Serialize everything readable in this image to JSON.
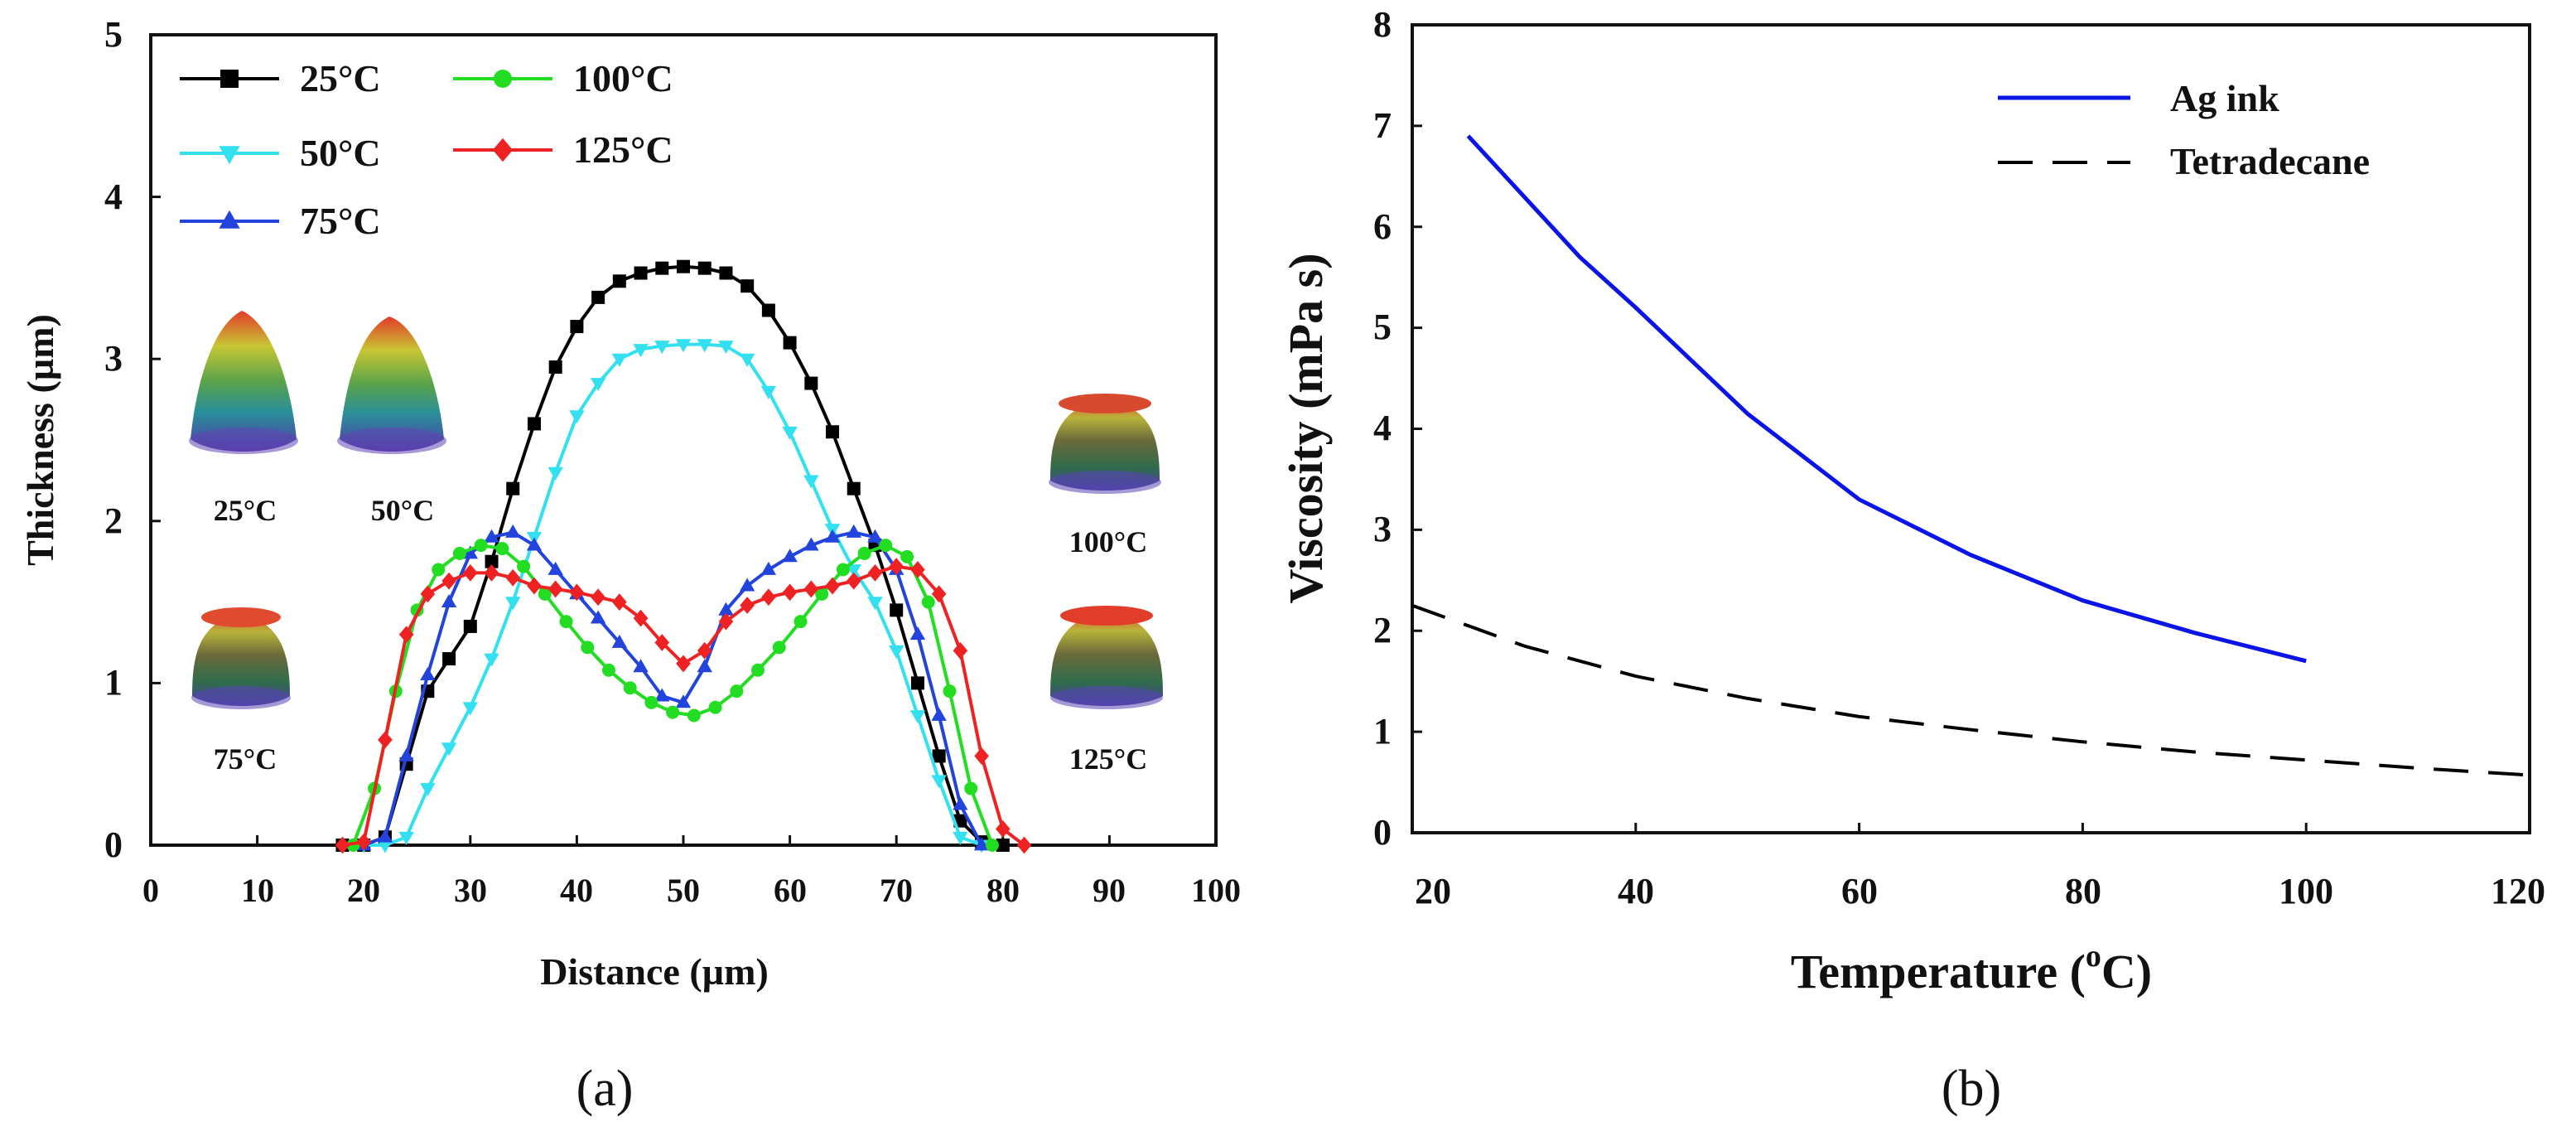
{
  "chart_data": [
    {
      "type": "line",
      "panel_label": "(a)",
      "xlabel": "Distance (µm)",
      "ylabel": "Thickness (µm)",
      "xlim": [
        0,
        100
      ],
      "ylim": [
        0,
        5
      ],
      "xticks": [
        "0",
        "10",
        "20",
        "30",
        "40",
        "50",
        "60",
        "70",
        "80",
        "90",
        "100"
      ],
      "yticks": [
        "0",
        "1",
        "2",
        "3",
        "4",
        "5"
      ],
      "legend_position": "top-left",
      "series": [
        {
          "name": "25°C",
          "color": "#000000",
          "marker": "square",
          "x": [
            18,
            20,
            22,
            24,
            26,
            28,
            30,
            32,
            34,
            36,
            38,
            40,
            42,
            44,
            46,
            48,
            50,
            52,
            54,
            56,
            58,
            60,
            62,
            64,
            66,
            68,
            70,
            72,
            74,
            76,
            78,
            80
          ],
          "y": [
            0,
            0,
            0.05,
            0.5,
            0.95,
            1.15,
            1.35,
            1.75,
            2.2,
            2.6,
            2.95,
            3.2,
            3.38,
            3.48,
            3.53,
            3.56,
            3.57,
            3.56,
            3.53,
            3.45,
            3.3,
            3.1,
            2.85,
            2.55,
            2.2,
            1.85,
            1.45,
            1.0,
            0.55,
            0.15,
            0.02,
            0
          ]
        },
        {
          "name": "50°C",
          "color": "#33e0f0",
          "marker": "triangle-down",
          "x": [
            20,
            22,
            24,
            26,
            28,
            30,
            32,
            34,
            36,
            38,
            40,
            42,
            44,
            46,
            48,
            50,
            52,
            54,
            56,
            58,
            60,
            62,
            64,
            66,
            68,
            70,
            72,
            74,
            76,
            78
          ],
          "y": [
            0,
            0,
            0.05,
            0.35,
            0.6,
            0.85,
            1.15,
            1.5,
            1.9,
            2.3,
            2.65,
            2.85,
            3.0,
            3.06,
            3.08,
            3.09,
            3.09,
            3.08,
            3.0,
            2.8,
            2.55,
            2.25,
            1.95,
            1.7,
            1.5,
            1.2,
            0.8,
            0.4,
            0.05,
            0
          ]
        },
        {
          "name": "75°C",
          "color": "#2244dd",
          "marker": "triangle-up",
          "x": [
            20,
            22,
            24,
            26,
            28,
            30,
            32,
            34,
            36,
            38,
            40,
            42,
            44,
            46,
            48,
            50,
            52,
            54,
            56,
            58,
            60,
            62,
            64,
            66,
            68,
            70,
            72,
            74,
            76,
            78
          ],
          "y": [
            0,
            0.05,
            0.55,
            1.05,
            1.5,
            1.8,
            1.9,
            1.93,
            1.85,
            1.7,
            1.55,
            1.4,
            1.25,
            1.1,
            0.92,
            0.88,
            1.1,
            1.45,
            1.6,
            1.7,
            1.78,
            1.85,
            1.9,
            1.93,
            1.9,
            1.7,
            1.3,
            0.8,
            0.25,
            0
          ]
        },
        {
          "name": "100°C",
          "color": "#22dd22",
          "marker": "circle",
          "x": [
            19,
            21,
            23,
            25,
            27,
            29,
            31,
            33,
            35,
            37,
            39,
            41,
            43,
            45,
            47,
            49,
            51,
            53,
            55,
            57,
            59,
            61,
            63,
            65,
            67,
            69,
            71,
            73,
            75,
            77,
            79
          ],
          "y": [
            0,
            0.35,
            0.95,
            1.45,
            1.7,
            1.8,
            1.85,
            1.83,
            1.72,
            1.55,
            1.38,
            1.22,
            1.08,
            0.97,
            0.88,
            0.82,
            0.8,
            0.85,
            0.95,
            1.08,
            1.22,
            1.38,
            1.55,
            1.7,
            1.8,
            1.85,
            1.78,
            1.5,
            0.95,
            0.35,
            0
          ]
        },
        {
          "name": "125°C",
          "color": "#ee2222",
          "marker": "diamond",
          "x": [
            18,
            20,
            22,
            24,
            26,
            28,
            30,
            32,
            34,
            36,
            38,
            40,
            42,
            44,
            46,
            48,
            50,
            52,
            54,
            56,
            58,
            60,
            62,
            64,
            66,
            68,
            70,
            72,
            74,
            76,
            78,
            80,
            82
          ],
          "y": [
            0,
            0.02,
            0.65,
            1.3,
            1.55,
            1.63,
            1.68,
            1.68,
            1.65,
            1.6,
            1.58,
            1.56,
            1.53,
            1.5,
            1.4,
            1.25,
            1.12,
            1.2,
            1.38,
            1.48,
            1.53,
            1.56,
            1.58,
            1.6,
            1.63,
            1.68,
            1.72,
            1.7,
            1.55,
            1.2,
            0.55,
            0.1,
            0
          ]
        }
      ],
      "insets": [
        {
          "label": "25°C",
          "shape": "cone"
        },
        {
          "label": "50°C",
          "shape": "cone"
        },
        {
          "label": "75°C",
          "shape": "cup"
        },
        {
          "label": "100°C",
          "shape": "cup"
        },
        {
          "label": "125°C",
          "shape": "cup"
        }
      ]
    },
    {
      "type": "line",
      "panel_label": "(b)",
      "xlabel": "Temperature (",
      "xlabel_super": "o",
      "xlabel_unit": "C)",
      "ylabel": "Viscosity (mPa s)",
      "xlim": [
        20,
        120
      ],
      "ylim": [
        0,
        8
      ],
      "xticks": [
        "20",
        "40",
        "60",
        "80",
        "100",
        "120"
      ],
      "yticks": [
        "0",
        "1",
        "2",
        "3",
        "4",
        "5",
        "6",
        "7",
        "8"
      ],
      "legend_position": "top-right",
      "series": [
        {
          "name": "Ag ink",
          "color": "#0a14e6",
          "style": "solid",
          "x": [
            25,
            30,
            35,
            40,
            50,
            60,
            70,
            80,
            90,
            100
          ],
          "y": [
            6.9,
            6.3,
            5.7,
            5.2,
            4.15,
            3.3,
            2.75,
            2.3,
            1.98,
            1.7
          ]
        },
        {
          "name": "Tetradecane",
          "color": "#000000",
          "style": "dashed",
          "x": [
            20,
            30,
            40,
            50,
            60,
            70,
            80,
            90,
            100,
            110,
            120
          ],
          "y": [
            2.25,
            1.85,
            1.55,
            1.33,
            1.15,
            1.02,
            0.9,
            0.8,
            0.72,
            0.64,
            0.57
          ]
        }
      ]
    }
  ]
}
